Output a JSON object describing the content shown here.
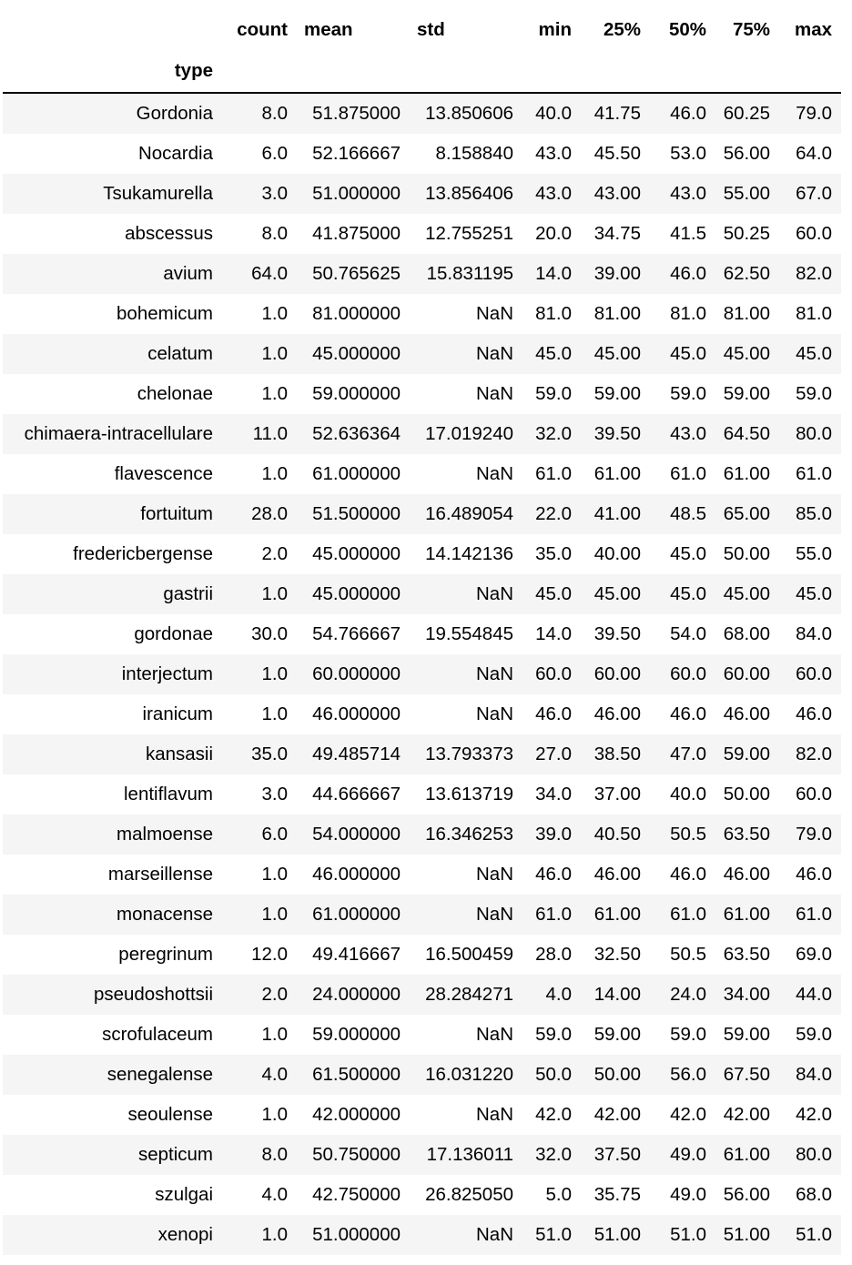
{
  "table": {
    "columns": [
      "count",
      "mean",
      "std",
      "min",
      "25%",
      "50%",
      "75%",
      "max"
    ],
    "index_name": "type",
    "rows": [
      {
        "type": "Gordonia",
        "values": [
          "8.0",
          "51.875000",
          "13.850606",
          "40.0",
          "41.75",
          "46.0",
          "60.25",
          "79.0"
        ]
      },
      {
        "type": "Nocardia",
        "values": [
          "6.0",
          "52.166667",
          "8.158840",
          "43.0",
          "45.50",
          "53.0",
          "56.00",
          "64.0"
        ]
      },
      {
        "type": "Tsukamurella",
        "values": [
          "3.0",
          "51.000000",
          "13.856406",
          "43.0",
          "43.00",
          "43.0",
          "55.00",
          "67.0"
        ]
      },
      {
        "type": "abscessus",
        "values": [
          "8.0",
          "41.875000",
          "12.755251",
          "20.0",
          "34.75",
          "41.5",
          "50.25",
          "60.0"
        ]
      },
      {
        "type": "avium",
        "values": [
          "64.0",
          "50.765625",
          "15.831195",
          "14.0",
          "39.00",
          "46.0",
          "62.50",
          "82.0"
        ]
      },
      {
        "type": "bohemicum",
        "values": [
          "1.0",
          "81.000000",
          "NaN",
          "81.0",
          "81.00",
          "81.0",
          "81.00",
          "81.0"
        ]
      },
      {
        "type": "celatum",
        "values": [
          "1.0",
          "45.000000",
          "NaN",
          "45.0",
          "45.00",
          "45.0",
          "45.00",
          "45.0"
        ]
      },
      {
        "type": "chelonae",
        "values": [
          "1.0",
          "59.000000",
          "NaN",
          "59.0",
          "59.00",
          "59.0",
          "59.00",
          "59.0"
        ]
      },
      {
        "type": "chimaera-intracellulare",
        "values": [
          "11.0",
          "52.636364",
          "17.019240",
          "32.0",
          "39.50",
          "43.0",
          "64.50",
          "80.0"
        ]
      },
      {
        "type": "flavescence",
        "values": [
          "1.0",
          "61.000000",
          "NaN",
          "61.0",
          "61.00",
          "61.0",
          "61.00",
          "61.0"
        ]
      },
      {
        "type": "fortuitum",
        "values": [
          "28.0",
          "51.500000",
          "16.489054",
          "22.0",
          "41.00",
          "48.5",
          "65.00",
          "85.0"
        ]
      },
      {
        "type": "fredericbergense",
        "values": [
          "2.0",
          "45.000000",
          "14.142136",
          "35.0",
          "40.00",
          "45.0",
          "50.00",
          "55.0"
        ]
      },
      {
        "type": "gastrii",
        "values": [
          "1.0",
          "45.000000",
          "NaN",
          "45.0",
          "45.00",
          "45.0",
          "45.00",
          "45.0"
        ]
      },
      {
        "type": "gordonae",
        "values": [
          "30.0",
          "54.766667",
          "19.554845",
          "14.0",
          "39.50",
          "54.0",
          "68.00",
          "84.0"
        ]
      },
      {
        "type": "interjectum",
        "values": [
          "1.0",
          "60.000000",
          "NaN",
          "60.0",
          "60.00",
          "60.0",
          "60.00",
          "60.0"
        ]
      },
      {
        "type": "iranicum",
        "values": [
          "1.0",
          "46.000000",
          "NaN",
          "46.0",
          "46.00",
          "46.0",
          "46.00",
          "46.0"
        ]
      },
      {
        "type": "kansasii",
        "values": [
          "35.0",
          "49.485714",
          "13.793373",
          "27.0",
          "38.50",
          "47.0",
          "59.00",
          "82.0"
        ]
      },
      {
        "type": "lentiflavum",
        "values": [
          "3.0",
          "44.666667",
          "13.613719",
          "34.0",
          "37.00",
          "40.0",
          "50.00",
          "60.0"
        ]
      },
      {
        "type": "malmoense",
        "values": [
          "6.0",
          "54.000000",
          "16.346253",
          "39.0",
          "40.50",
          "50.5",
          "63.50",
          "79.0"
        ]
      },
      {
        "type": "marseillense",
        "values": [
          "1.0",
          "46.000000",
          "NaN",
          "46.0",
          "46.00",
          "46.0",
          "46.00",
          "46.0"
        ]
      },
      {
        "type": "monacense",
        "values": [
          "1.0",
          "61.000000",
          "NaN",
          "61.0",
          "61.00",
          "61.0",
          "61.00",
          "61.0"
        ]
      },
      {
        "type": "peregrinum",
        "values": [
          "12.0",
          "49.416667",
          "16.500459",
          "28.0",
          "32.50",
          "50.5",
          "63.50",
          "69.0"
        ]
      },
      {
        "type": "pseudoshottsii",
        "values": [
          "2.0",
          "24.000000",
          "28.284271",
          "4.0",
          "14.00",
          "24.0",
          "34.00",
          "44.0"
        ]
      },
      {
        "type": "scrofulaceum",
        "values": [
          "1.0",
          "59.000000",
          "NaN",
          "59.0",
          "59.00",
          "59.0",
          "59.00",
          "59.0"
        ]
      },
      {
        "type": "senegalense",
        "values": [
          "4.0",
          "61.500000",
          "16.031220",
          "50.0",
          "50.00",
          "56.0",
          "67.50",
          "84.0"
        ]
      },
      {
        "type": "seoulense",
        "values": [
          "1.0",
          "42.000000",
          "NaN",
          "42.0",
          "42.00",
          "42.0",
          "42.00",
          "42.0"
        ]
      },
      {
        "type": "septicum",
        "values": [
          "8.0",
          "50.750000",
          "17.136011",
          "32.0",
          "37.50",
          "49.0",
          "61.00",
          "80.0"
        ]
      },
      {
        "type": "szulgai",
        "values": [
          "4.0",
          "42.750000",
          "26.825050",
          "5.0",
          "35.75",
          "49.0",
          "56.00",
          "68.0"
        ]
      },
      {
        "type": "xenopi",
        "values": [
          "1.0",
          "51.000000",
          "NaN",
          "51.0",
          "51.00",
          "51.0",
          "51.00",
          "51.0"
        ]
      }
    ]
  }
}
